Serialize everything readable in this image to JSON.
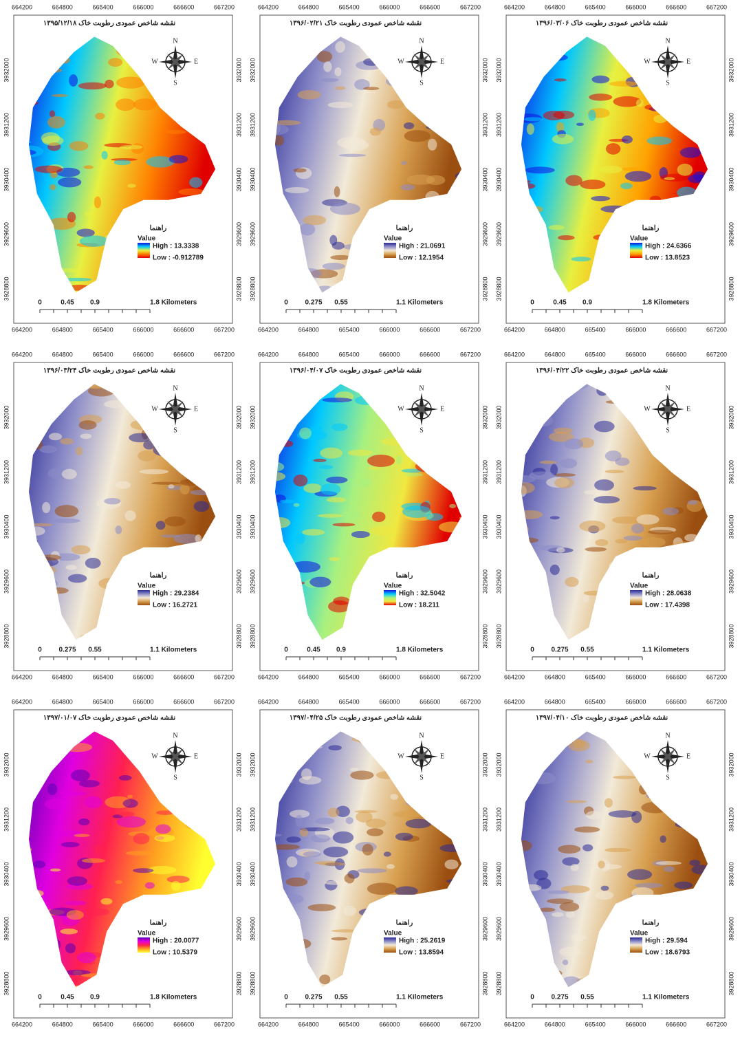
{
  "x_ticks": [
    664200,
    664800,
    665400,
    666000,
    666600,
    667200
  ],
  "y_ticks": [
    3928800,
    3929600,
    3930400,
    3931200,
    3932000
  ],
  "compass": [
    "N",
    "E",
    "S",
    "W"
  ],
  "maps": [
    {
      "title": "نقشه شاخص عمودی رطوبت خاک ۱۳۹۵/۱۲/۱۸",
      "legend_title": "راهنما",
      "value_label": "Value",
      "high": "High : 13.3338",
      "low": "Low : -0.912789",
      "scale": [
        "0",
        "0.45",
        "0.9",
        "1.8 Kilometers"
      ],
      "colors": [
        "#1010e0",
        "#00c8ff",
        "#e8f040",
        "#ff8000",
        "#e00000"
      ]
    },
    {
      "title": "نقشه شاخص عمودی رطوبت خاک ۱۳۹۶/۰۲/۲۱",
      "legend_title": "راهنما",
      "value_label": "Value",
      "high": "High : 21.0691",
      "low": "Low : 12.1954",
      "scale": [
        "0",
        "0.275",
        "0.55",
        "1.1 Kilometers"
      ],
      "colors": [
        "#2a2a96",
        "#8c8cc8",
        "#f2ead8",
        "#d8a050",
        "#9a4e10"
      ]
    },
    {
      "title": "نقشه شاخص عمودی رطوبت خاک ۱۳۹۶/۰۳/۰۶",
      "legend_title": "راهنما",
      "value_label": "Value",
      "high": "High : 24.6366",
      "low": "Low : 13.8523",
      "scale": [
        "0",
        "0.45",
        "0.9",
        "1.8 Kilometers"
      ],
      "colors": [
        "#1010e0",
        "#00c8ff",
        "#e8f040",
        "#ffa000",
        "#e00000"
      ]
    },
    {
      "title": "نقشه شاخص عمودی رطوبت خاک ۱۳۹۶/۰۳/۲۴",
      "legend_title": "راهنما",
      "value_label": "Value",
      "high": "High : 29.2384",
      "low": "Low : 16.2721",
      "scale": [
        "0",
        "0.275",
        "0.55",
        "1.1 Kilometers"
      ],
      "colors": [
        "#2a2a96",
        "#8c8cc8",
        "#f2ead8",
        "#d8a050",
        "#9a4e10"
      ]
    },
    {
      "title": "نقشه شاخص عمودی رطوبت خاک ۱۳۹۶/۰۴/۰۷",
      "legend_title": "راهنما",
      "value_label": "Value",
      "high": "High : 32.5042",
      "low": "Low : 18.211",
      "scale": [
        "0",
        "0.45",
        "0.9",
        "1.8 Kilometers"
      ],
      "colors": [
        "#1010e0",
        "#00c8ff",
        "#a8f080",
        "#f0e840",
        "#e00000"
      ]
    },
    {
      "title": "نقشه شاخص عمودی رطوبت خاک ۱۳۹۶/۰۴/۲۲",
      "legend_title": "راهنما",
      "value_label": "Value",
      "high": "High : 28.0638",
      "low": "Low : 17.4398",
      "scale": [
        "0",
        "0.275",
        "0.55",
        "1.1 Kilometers"
      ],
      "colors": [
        "#2a2a96",
        "#8c8cc8",
        "#f2ead8",
        "#d8a050",
        "#9a4e10"
      ]
    },
    {
      "title": "نقشه شاخص عمودی رطوبت خاک ۱۳۹۷/۰۱/۰۷",
      "legend_title": "راهنما",
      "value_label": "Value",
      "high": "High : 20.0077",
      "low": "Low : 10.5379",
      "scale": [
        "0",
        "0.45",
        "0.9",
        "1.8 Kilometers"
      ],
      "colors": [
        "#5a00b4",
        "#e000e0",
        "#ff2050",
        "#ffa020",
        "#ffff30"
      ]
    },
    {
      "title": "نقشه شاخص عمودی رطوبت خاک ۱۳۹۷/۰۴/۲۵",
      "legend_title": "راهنما",
      "value_label": "Value",
      "high": "High : 25.2619",
      "low": "Low : 13.8594",
      "scale": [
        "0",
        "0.275",
        "0.55",
        "1.1 Kilometers"
      ],
      "colors": [
        "#2a2a96",
        "#8c8cc8",
        "#f2ead8",
        "#d8a050",
        "#9a4e10"
      ]
    },
    {
      "title": "نقشه شاخص عمودی رطوبت خاک ۱۳۹۷/۰۴/۱۰",
      "legend_title": "راهنما",
      "value_label": "Value",
      "high": "High : 29.594",
      "low": "Low : 18.6793",
      "scale": [
        "0",
        "0.275",
        "0.55",
        "1.1 Kilometers"
      ],
      "colors": [
        "#2a2a96",
        "#8c8cc8",
        "#f2ead8",
        "#d8a050",
        "#9a4e10"
      ]
    }
  ]
}
